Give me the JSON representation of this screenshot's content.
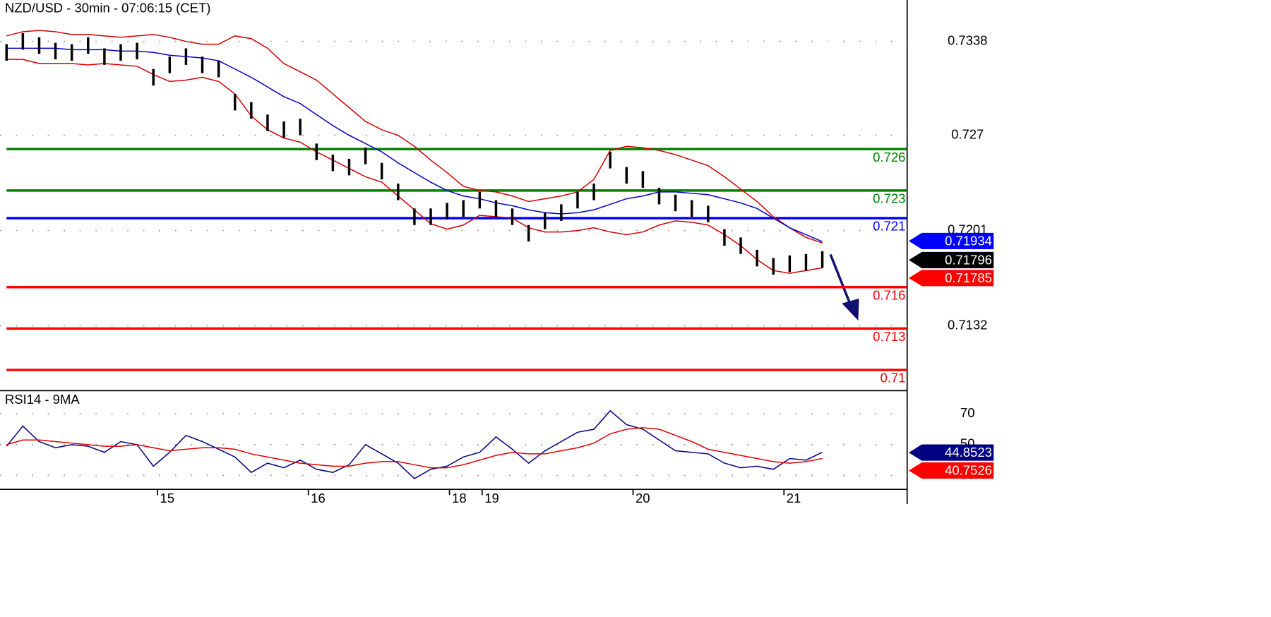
{
  "chart_data": [
    {
      "type": "ohlc",
      "title": "NZD/USD - 30min - 07:06:15 (CET)",
      "xlim": [
        -0.4,
        55.2
      ],
      "ylim": [
        0.7085,
        0.7368
      ],
      "yticks": [
        0.7338,
        0.727,
        0.7201,
        0.7132
      ],
      "grid": true,
      "bar_color": "#000000",
      "high": [
        0.7336,
        0.7344,
        0.7341,
        0.7337,
        0.7336,
        0.7341,
        0.7333,
        0.7336,
        0.7337,
        0.7318,
        0.7327,
        0.7333,
        0.7327,
        0.7324,
        0.73,
        0.7294,
        0.7285,
        0.728,
        0.7282,
        0.7264,
        0.7256,
        0.7253,
        0.7261,
        0.725,
        0.7235,
        0.7217,
        0.7217,
        0.7221,
        0.7223,
        0.7229,
        0.7223,
        0.7217,
        0.7205,
        0.7214,
        0.722,
        0.7229,
        0.7235,
        0.7258,
        0.7247,
        0.7244,
        0.7232,
        0.7227,
        0.7223,
        0.7219,
        0.7202,
        0.7196,
        0.7187,
        0.7181,
        0.7183,
        0.7184,
        0.7186
      ],
      "low": [
        0.7324,
        0.7332,
        0.7329,
        0.7325,
        0.7324,
        0.7329,
        0.7321,
        0.7324,
        0.7325,
        0.7306,
        0.7315,
        0.7321,
        0.7315,
        0.7312,
        0.7288,
        0.7282,
        0.7273,
        0.7268,
        0.727,
        0.7252,
        0.7244,
        0.7241,
        0.7249,
        0.7238,
        0.7223,
        0.7205,
        0.7205,
        0.7209,
        0.7211,
        0.7217,
        0.7211,
        0.7205,
        0.7193,
        0.7202,
        0.7208,
        0.7217,
        0.7223,
        0.7246,
        0.7235,
        0.7232,
        0.722,
        0.7215,
        0.7211,
        0.7207,
        0.719,
        0.7184,
        0.7175,
        0.7169,
        0.7171,
        0.7172,
        0.7174
      ],
      "series": [
        {
          "color": "#d40000",
          "values": [
            0.7342,
            0.7345,
            0.7346,
            0.7345,
            0.7343,
            0.7343,
            0.7342,
            0.7341,
            0.7342,
            0.7343,
            0.7341,
            0.7338,
            0.7336,
            0.7336,
            0.7342,
            0.734,
            0.7333,
            0.7322,
            0.7316,
            0.731,
            0.73,
            0.729,
            0.728,
            0.7274,
            0.727,
            0.7262,
            0.7252,
            0.7243,
            0.7233,
            0.723,
            0.7229,
            0.7226,
            0.7222,
            0.7224,
            0.7226,
            0.7229,
            0.7238,
            0.7259,
            0.7262,
            0.7261,
            0.7259,
            0.7256,
            0.7252,
            0.7248,
            0.724,
            0.7231,
            0.7222,
            0.7211,
            0.7203,
            0.7196,
            0.7192
          ]
        },
        {
          "color": "#d40000",
          "values": [
            0.7325,
            0.7325,
            0.7322,
            0.7322,
            0.7322,
            0.7321,
            0.7322,
            0.7321,
            0.732,
            0.7314,
            0.7309,
            0.731,
            0.7312,
            0.7309,
            0.73,
            0.7284,
            0.7274,
            0.7268,
            0.7265,
            0.7258,
            0.7252,
            0.7246,
            0.724,
            0.7236,
            0.7226,
            0.7216,
            0.7206,
            0.7202,
            0.7205,
            0.7212,
            0.7211,
            0.721,
            0.7203,
            0.72,
            0.72,
            0.7201,
            0.7203,
            0.72,
            0.7198,
            0.72,
            0.7205,
            0.7208,
            0.7207,
            0.7205,
            0.7198,
            0.719,
            0.718,
            0.7172,
            0.717,
            0.7172,
            0.7174
          ]
        },
        {
          "color": "#0000c8",
          "values": [
            0.7333,
            0.7333,
            0.7333,
            0.7333,
            0.7332,
            0.7332,
            0.7332,
            0.7331,
            0.7331,
            0.733,
            0.7328,
            0.7327,
            0.7326,
            0.7324,
            0.7318,
            0.7312,
            0.7305,
            0.7298,
            0.7293,
            0.7285,
            0.7277,
            0.727,
            0.7264,
            0.7258,
            0.725,
            0.7243,
            0.7236,
            0.723,
            0.7226,
            0.7224,
            0.7221,
            0.7219,
            0.7216,
            0.7214,
            0.7213,
            0.7214,
            0.7216,
            0.722,
            0.7224,
            0.7226,
            0.7229,
            0.7229,
            0.7228,
            0.7227,
            0.7224,
            0.7221,
            0.7217,
            0.721,
            0.7203,
            0.7198,
            0.7193
          ]
        }
      ],
      "levels": [
        {
          "value": 0.726,
          "color": "#008000"
        },
        {
          "value": 0.723,
          "color": "#008000"
        },
        {
          "value": 0.721,
          "color": "#0000ff"
        },
        {
          "value": 0.716,
          "color": "#ff0000"
        },
        {
          "value": 0.713,
          "color": "#ff0000"
        },
        {
          "value": 0.71,
          "color": "#ff0000"
        }
      ],
      "markers": [
        {
          "value": 0.71934,
          "color": "#0000ff"
        },
        {
          "value": 0.71796,
          "color": "#000000"
        },
        {
          "value": 0.71785,
          "color": "#ff0000"
        }
      ]
    },
    {
      "type": "line",
      "title": "RSI14 - 9MA",
      "xlim": [
        -0.4,
        55.2
      ],
      "xticks": [
        {
          "value": 9.25,
          "label": "15"
        },
        {
          "value": 18.5,
          "label": "16"
        },
        {
          "value": 27.15,
          "label": "18"
        },
        {
          "value": 29.15,
          "label": "19"
        },
        {
          "value": 38.4,
          "label": "20"
        },
        {
          "value": 47.65,
          "label": "21"
        }
      ],
      "ylim": [
        21,
        85
      ],
      "yticks": [
        70,
        50,
        30
      ],
      "grid": true,
      "series": [
        {
          "color": "#000080",
          "values": [
            49,
            62,
            52,
            48,
            50,
            49,
            45,
            52,
            50,
            36,
            45,
            56,
            52,
            47,
            42,
            32,
            38,
            35,
            40,
            34,
            32,
            37,
            50,
            44,
            38,
            28,
            34,
            36,
            42,
            45,
            55,
            47,
            38,
            46,
            52,
            58,
            60,
            72,
            63,
            60,
            53,
            46,
            45,
            44,
            38,
            35,
            36,
            34,
            41,
            40,
            45
          ]
        },
        {
          "color": "#e00000",
          "values": [
            50,
            53,
            53,
            52,
            51,
            50,
            49,
            49,
            50,
            48,
            46,
            47,
            48,
            48,
            47,
            44,
            42,
            40,
            38,
            37,
            36,
            36,
            38,
            39,
            39,
            37,
            35,
            35,
            37,
            40,
            43,
            45,
            44,
            44,
            46,
            48,
            51,
            57,
            60,
            61,
            60,
            56,
            52,
            47,
            45,
            43,
            41,
            39,
            38,
            39,
            41
          ]
        }
      ],
      "markers": [
        {
          "value": 44.8523,
          "color": "#000080"
        },
        {
          "value": 40.7526,
          "color": "#ff0000"
        }
      ]
    }
  ]
}
